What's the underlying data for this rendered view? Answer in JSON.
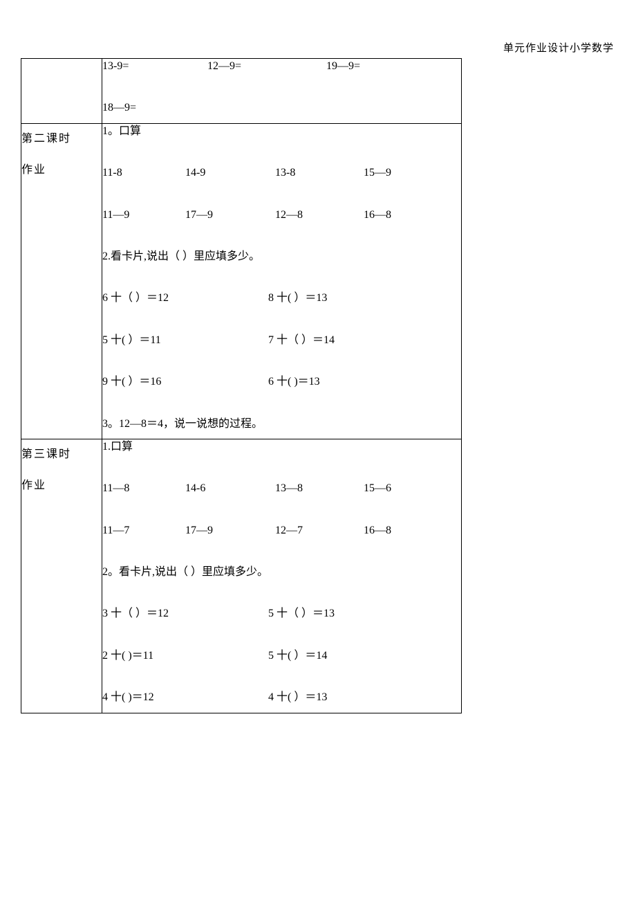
{
  "header": "单元作业设计小学数学",
  "rows": [
    {
      "label_lines": [
        "",
        ""
      ],
      "content_lines": [
        [
          {
            "t": "13-9=",
            "w": "w-a"
          },
          {
            "t": "12—9=",
            "w": "w-b"
          },
          {
            "t": "19—9=",
            "w": ""
          }
        ],
        [
          {
            "t": "18—9=",
            "w": ""
          }
        ]
      ]
    },
    {
      "label_lines": [
        "第二课时",
        "作业"
      ],
      "content_lines": [
        [
          {
            "t": "1。口算",
            "w": ""
          }
        ],
        [
          {
            "t": "11-8",
            "w": "w-c"
          },
          {
            "t": "14-9",
            "w": "w-d"
          },
          {
            "t": "13-8",
            "w": "w-e"
          },
          {
            "t": "15—9",
            "w": ""
          }
        ],
        [
          {
            "t": "11—9",
            "w": "w-c"
          },
          {
            "t": "17—9",
            "w": "w-d"
          },
          {
            "t": " 12—8",
            "w": "w-e"
          },
          {
            "t": "16—8",
            "w": ""
          }
        ],
        [
          {
            "t": "2.看卡片,说出（        ）里应填多少。",
            "w": ""
          }
        ],
        [
          {
            "t": "6 十（        ）＝12",
            "w": "w-g"
          },
          {
            "t": "8 十(         ）＝13",
            "w": ""
          }
        ],
        [
          {
            "t": "5 十(         ）＝11",
            "w": "w-g"
          },
          {
            "t": "7 十（        ）＝14",
            "w": ""
          }
        ],
        [
          {
            "t": "9 十(         ）＝16",
            "w": "w-g"
          },
          {
            "t": "6 十(         )＝13",
            "w": ""
          }
        ],
        [
          {
            "t": "3。12—8＝4，说一说想的过程。",
            "w": ""
          }
        ]
      ]
    },
    {
      "label_lines": [
        "第三课时",
        "作业"
      ],
      "content_lines": [
        [
          {
            "t": "1.口算",
            "w": ""
          }
        ],
        [
          {
            "t": "11—8",
            "w": "w-c"
          },
          {
            "t": "14-6",
            "w": "w-d"
          },
          {
            "t": "13—8",
            "w": "w-e"
          },
          {
            "t": "15—6",
            "w": ""
          }
        ],
        [
          {
            "t": "11—7",
            "w": "w-c"
          },
          {
            "t": "17—9",
            "w": "w-d"
          },
          {
            "t": " 12—7",
            "w": "w-e"
          },
          {
            "t": "16—8",
            "w": ""
          }
        ],
        [
          {
            "t": "2。看卡片,说出（        ）里应填多少。",
            "w": ""
          }
        ],
        [
          {
            "t": "3 十（        ）＝12",
            "w": "w-g"
          },
          {
            "t": "5 十（        ）＝13",
            "w": ""
          }
        ],
        [
          {
            "t": "2 十(         )＝11",
            "w": "w-g"
          },
          {
            "t": "5 十(         ）＝14",
            "w": ""
          }
        ],
        [
          {
            "t": "4 十(         )＝12",
            "w": "w-g"
          },
          {
            "t": "4 十(         ）＝13",
            "w": ""
          }
        ]
      ]
    }
  ]
}
